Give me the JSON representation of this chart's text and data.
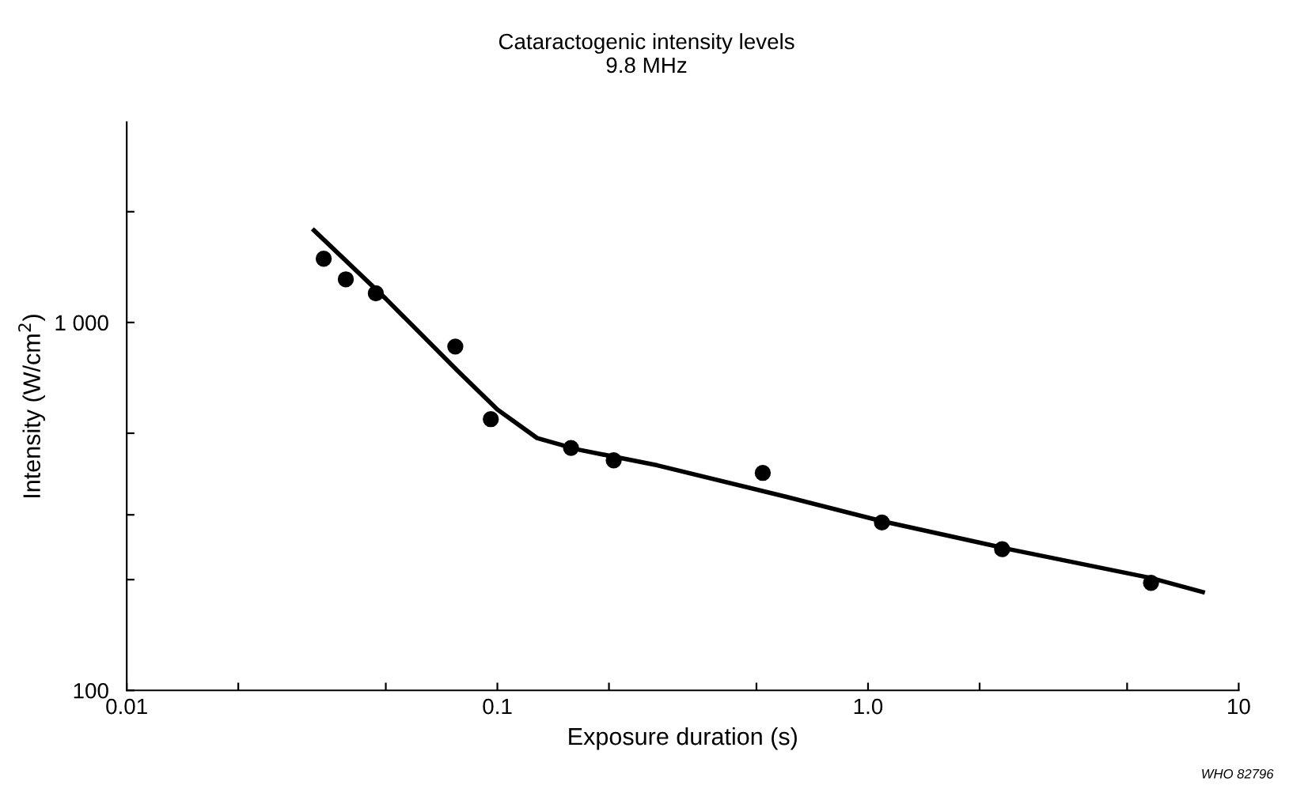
{
  "chart_data": {
    "type": "scatter",
    "title": "Cataractogenic intensity levels\n9.8 MHz",
    "xlabel": "Exposure duration (s)",
    "ylabel": "Intensity (W/cm$^{2}$)",
    "log": "xy",
    "xlim": [
      0.01,
      10
    ],
    "ylim": [
      100,
      3500
    ],
    "xticks": [
      0.01,
      {
        "value": 0.02,
        "label": null
      },
      {
        "value": 0.05,
        "label": null
      },
      0.1,
      {
        "value": 0.2,
        "label": null
      },
      {
        "value": 0.5,
        "label": null
      },
      {
        "value": 1,
        "label": "1.0"
      },
      {
        "value": 2,
        "label": null
      },
      {
        "value": 5,
        "label": null
      },
      10
    ],
    "yticks": [
      100,
      {
        "value": 200,
        "label": null
      },
      {
        "value": 300,
        "label": null
      },
      {
        "value": 500,
        "label": null
      },
      {
        "value": 1000,
        "label": "1 000"
      },
      {
        "value": 2000,
        "label": null
      }
    ],
    "grid": false,
    "series": [
      {
        "color": "#000000",
        "marker": "circle",
        "x": [
          0.034,
          0.039,
          0.047,
          0.077,
          0.096,
          0.158,
          0.206,
          0.52,
          1.09,
          2.3,
          5.8
        ],
        "values": [
          1490,
          1310,
          1200,
          860,
          546,
          456,
          422,
          390,
          286,
          242,
          196
        ]
      },
      {
        "type": "line",
        "color": "#000000",
        "marker": "none",
        "line_style": "solid",
        "x": [
          0.032,
          0.05,
          0.078,
          0.1,
          0.128,
          0.164,
          0.27,
          0.6,
          1.08,
          2.4,
          5.8,
          8
        ],
        "values": [
          1780,
          1160,
          740,
          580,
          485,
          452,
          409,
          336,
          289,
          242,
          202,
          185
        ]
      }
    ],
    "annotations": [
      "WHO 82796"
    ]
  }
}
